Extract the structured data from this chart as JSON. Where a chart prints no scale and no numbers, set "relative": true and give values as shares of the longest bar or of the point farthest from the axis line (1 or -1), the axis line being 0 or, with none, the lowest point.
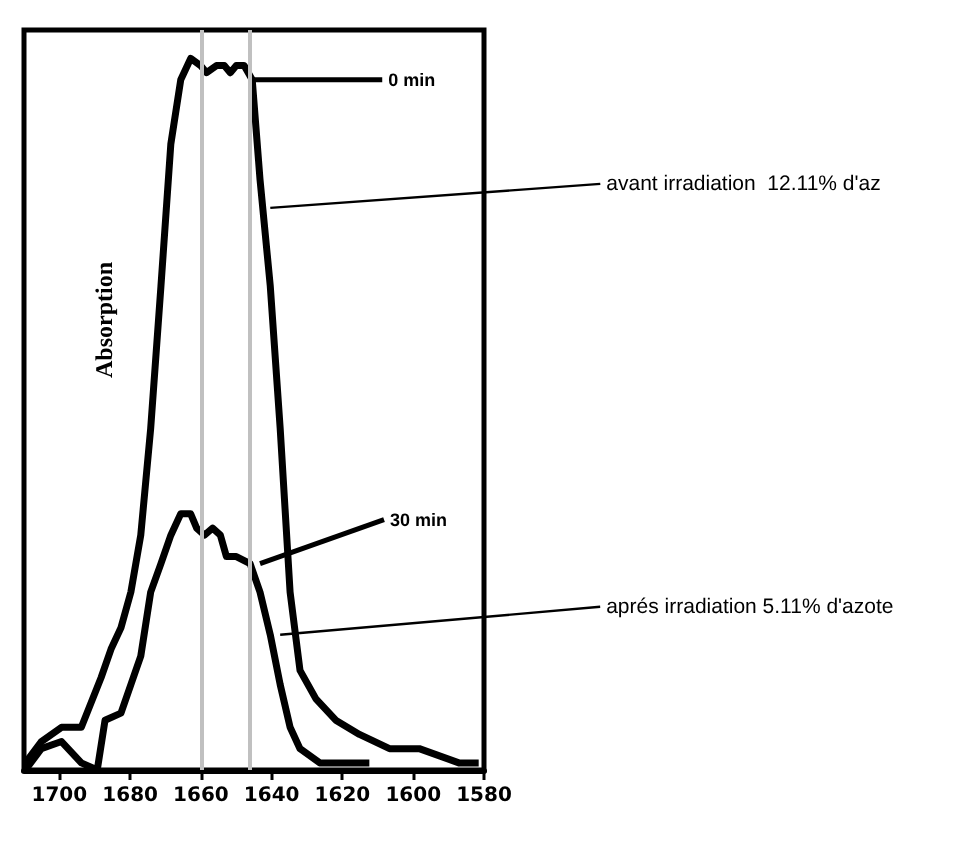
{
  "chart_data": {
    "type": "line",
    "relative": true,
    "ylabel": "Absorption",
    "xlim": [
      1710,
      1580
    ],
    "xticks": [
      1700,
      1680,
      1660,
      1640,
      1620,
      1600,
      1580
    ],
    "marker": "none",
    "line_style": "solid",
    "series": [
      {
        "color": "#000000",
        "x": [
          1709.6,
          1705.1,
          1699.4,
          1693.8,
          1688.2,
          1685.4,
          1682.6,
          1679.8,
          1677.0,
          1674.2,
          1671.3,
          1668.5,
          1665.7,
          1662.9,
          1660.1,
          1658.4,
          1655.6,
          1653.4,
          1651.7,
          1650.0,
          1647.8,
          1645.5,
          1643.3,
          1640.4,
          1637.6,
          1634.8,
          1632.0,
          1627.5,
          1621.9,
          1615.2,
          1606.7,
          1598.3,
          1587.1,
          1581.5
        ],
        "values": [
          0.01,
          0.04,
          0.06,
          0.06,
          0.13,
          0.17,
          0.2,
          0.25,
          0.33,
          0.48,
          0.68,
          0.88,
          0.97,
          1,
          0.99,
          0.98,
          0.99,
          0.99,
          0.98,
          0.99,
          0.99,
          0.97,
          0.83,
          0.68,
          0.48,
          0.25,
          0.14,
          0.1,
          0.07,
          0.05,
          0.03,
          0.03,
          0.01,
          0.01
        ]
      },
      {
        "color": "#000000",
        "x": [
          1709.6,
          1705.1,
          1699.4,
          1693.8,
          1689.3,
          1687.1,
          1682.6,
          1679.8,
          1677.0,
          1674.2,
          1671.3,
          1668.5,
          1665.7,
          1662.9,
          1661.2,
          1659.0,
          1656.7,
          1654.5,
          1652.8,
          1650.0,
          1646.1,
          1643.3,
          1640.4,
          1637.6,
          1634.8,
          1632.0,
          1626.4,
          1618.0,
          1612.4
        ],
        "values": [
          0,
          0.03,
          0.04,
          0.01,
          0,
          0.07,
          0.08,
          0.12,
          0.16,
          0.25,
          0.29,
          0.33,
          0.36,
          0.36,
          0.34,
          0.33,
          0.34,
          0.33,
          0.3,
          0.3,
          0.29,
          0.25,
          0.19,
          0.12,
          0.06,
          0.03,
          0.01,
          0.01,
          0.01
        ]
      }
    ],
    "ref_lines": [
      {
        "axis": "x",
        "value": 1660,
        "color": "#c0c0c0"
      },
      {
        "axis": "x",
        "value": 1646,
        "color": "#c0c0c0"
      }
    ],
    "annotations": [
      {
        "text": "0 min",
        "x": 1645.5,
        "y": 0.97
      },
      {
        "text": "avant irradiation  12.11% d'az",
        "x": 1640.4,
        "y": 0.79
      },
      {
        "text": "30 min",
        "x": 1643.3,
        "y": 0.29
      },
      {
        "text": "aprés irradiation 5.11% d'azote",
        "x": 1637.6,
        "y": 0.19
      }
    ]
  }
}
